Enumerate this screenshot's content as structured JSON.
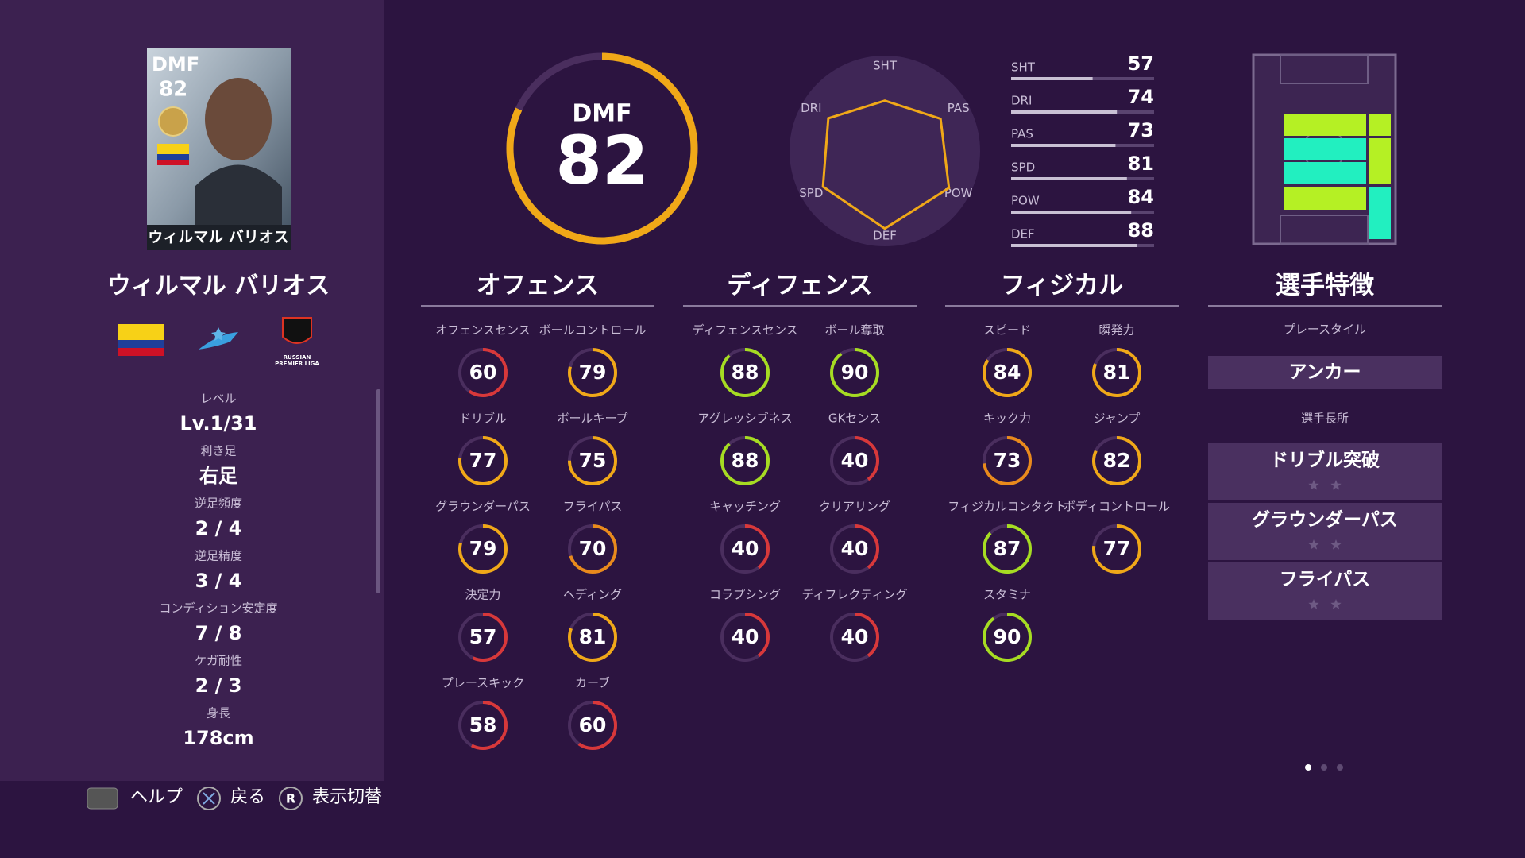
{
  "card": {
    "position": "DMF",
    "overall": 82,
    "name": "ウィルマル バリオス"
  },
  "player_name": "ウィルマル バリオス",
  "league_logo": [
    "RUSSIAN",
    "PREMIER LIGA"
  ],
  "profile": [
    {
      "label": "レベル",
      "value": "Lv.1/31"
    },
    {
      "label": "利き足",
      "value": "右足"
    },
    {
      "label": "逆足頻度",
      "value": "2 / 4"
    },
    {
      "label": "逆足精度",
      "value": "3 / 4"
    },
    {
      "label": "コンディション安定度",
      "value": "7 / 8"
    },
    {
      "label": "ケガ耐性",
      "value": "2 / 3"
    },
    {
      "label": "身長",
      "value": "178cm"
    }
  ],
  "overall_ring": {
    "position": "DMF",
    "rating": 82
  },
  "radar": [
    {
      "label": "SHT",
      "value": 57
    },
    {
      "label": "PAS",
      "value": 73
    },
    {
      "label": "POW",
      "value": 84
    },
    {
      "label": "DEF",
      "value": 88
    },
    {
      "label": "SPD",
      "value": 81
    },
    {
      "label": "DRI",
      "value": 74
    }
  ],
  "summary": [
    {
      "label": "SHT",
      "value": 57
    },
    {
      "label": "DRI",
      "value": 74
    },
    {
      "label": "PAS",
      "value": 73
    },
    {
      "label": "SPD",
      "value": 81
    },
    {
      "label": "POW",
      "value": 84
    },
    {
      "label": "DEF",
      "value": 88
    }
  ],
  "sections": [
    {
      "title": "オフェンス",
      "stats": [
        {
          "label": "オフェンスセンス",
          "value": 60
        },
        {
          "label": "ボールコントロール",
          "value": 79
        },
        {
          "label": "ドリブル",
          "value": 77
        },
        {
          "label": "ボールキープ",
          "value": 75
        },
        {
          "label": "グラウンダーパス",
          "value": 79
        },
        {
          "label": "フライパス",
          "value": 70
        },
        {
          "label": "決定力",
          "value": 57
        },
        {
          "label": "ヘディング",
          "value": 81
        },
        {
          "label": "プレースキック",
          "value": 58
        },
        {
          "label": "カーブ",
          "value": 60
        }
      ]
    },
    {
      "title": "ディフェンス",
      "stats": [
        {
          "label": "ディフェンスセンス",
          "value": 88
        },
        {
          "label": "ボール奪取",
          "value": 90
        },
        {
          "label": "アグレッシブネス",
          "value": 88
        },
        {
          "label": "GKセンス",
          "value": 40
        },
        {
          "label": "キャッチング",
          "value": 40
        },
        {
          "label": "クリアリング",
          "value": 40
        },
        {
          "label": "コラプシング",
          "value": 40
        },
        {
          "label": "ディフレクティング",
          "value": 40
        }
      ]
    },
    {
      "title": "フィジカル",
      "stats": [
        {
          "label": "スピード",
          "value": 84
        },
        {
          "label": "瞬発力",
          "value": 81
        },
        {
          "label": "キック力",
          "value": 73
        },
        {
          "label": "ジャンプ",
          "value": 82
        },
        {
          "label": "フィジカルコンタクト",
          "value": 87
        },
        {
          "label": "ボディコントロール",
          "value": 77
        },
        {
          "label": "スタミナ",
          "value": 90
        }
      ]
    }
  ],
  "traits": {
    "title": "選手特徴",
    "playstyle_label": "プレースタイル",
    "playstyle": "アンカー",
    "skills_label": "選手長所",
    "skills": [
      "ドリブル突破",
      "グラウンダーパス",
      "フライパス"
    ]
  },
  "footer": {
    "help": "ヘルプ",
    "back": "戻る",
    "toggle_button": "R",
    "toggle": "表示切替"
  }
}
